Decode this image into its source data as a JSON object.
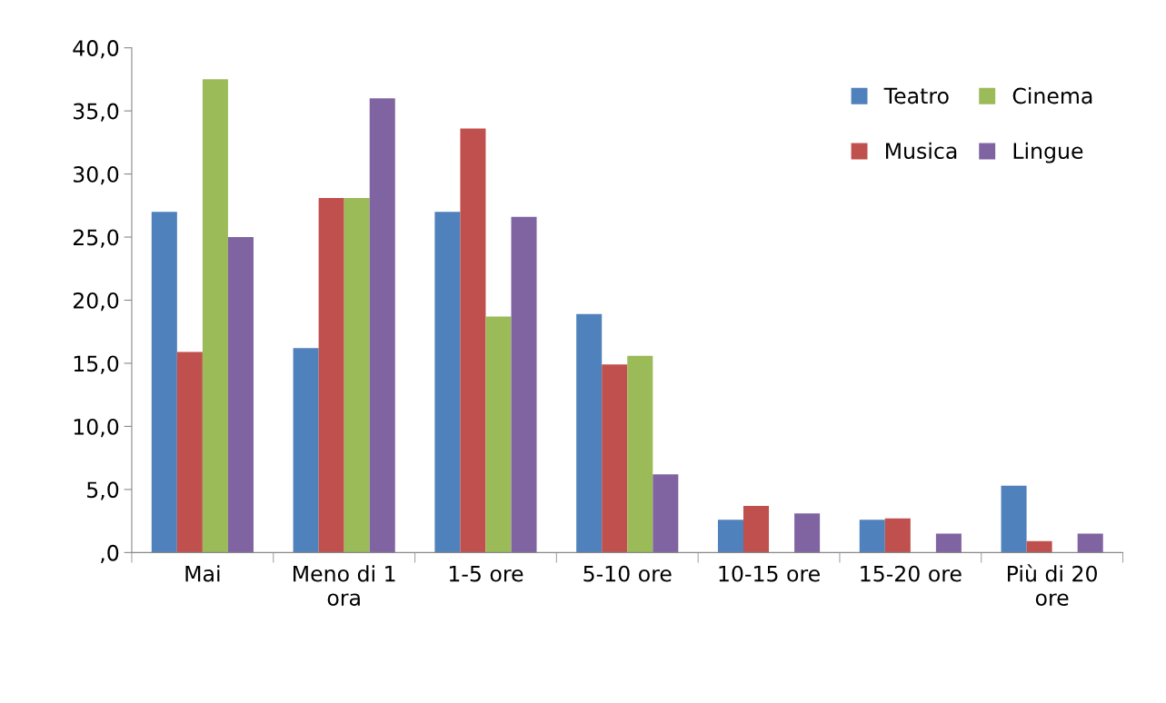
{
  "chart_data": {
    "type": "bar",
    "categories": [
      "Mai",
      "Meno di 1\nora",
      "1-5 ore",
      "5-10 ore",
      "10-15 ore",
      "15-20 ore",
      "Più di 20\nore"
    ],
    "series": [
      {
        "name": "Teatro",
        "color": "#4f81bd",
        "values": [
          27.0,
          16.2,
          27.0,
          18.9,
          2.6,
          2.6,
          5.3
        ]
      },
      {
        "name": "Musica",
        "color": "#c0504d",
        "values": [
          15.9,
          28.1,
          33.6,
          14.9,
          3.7,
          2.7,
          0.9
        ]
      },
      {
        "name": "Cinema",
        "color": "#9bbb59",
        "values": [
          37.5,
          28.1,
          18.7,
          15.6,
          0,
          0,
          0
        ]
      },
      {
        "name": "Lingue",
        "color": "#8064a2",
        "values": [
          25.0,
          36.0,
          26.6,
          6.2,
          3.1,
          1.5,
          1.5
        ]
      }
    ],
    "ylim": [
      0,
      40
    ],
    "yticks": [
      {
        "value": 0,
        "label": ",0"
      },
      {
        "value": 5,
        "label": "5,0"
      },
      {
        "value": 10,
        "label": "10,0"
      },
      {
        "value": 15,
        "label": "15,0"
      },
      {
        "value": 20,
        "label": "20,0"
      },
      {
        "value": 25,
        "label": "25,0"
      },
      {
        "value": 30,
        "label": "30,0"
      },
      {
        "value": 35,
        "label": "35,0"
      },
      {
        "value": 40,
        "label": "40,0"
      }
    ],
    "grid": false,
    "legend": "top right"
  }
}
